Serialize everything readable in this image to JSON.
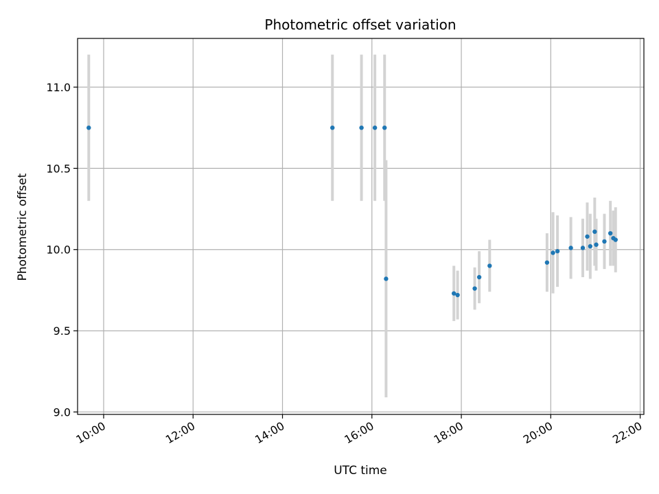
{
  "chart_data": {
    "type": "scatter",
    "title": "Photometric offset variation",
    "xlabel": "UTC time",
    "ylabel": "Photometric offset",
    "xlim": [
      "09:25",
      "22:05"
    ],
    "ylim": [
      8.985,
      11.3
    ],
    "x_ticks": [
      "10:00",
      "12:00",
      "14:00",
      "16:00",
      "18:00",
      "20:00",
      "22:00"
    ],
    "y_ticks": [
      "9.0",
      "9.5",
      "10.0",
      "10.5",
      "11.0"
    ],
    "grid": true,
    "error_bar_color": "#d3d3d3",
    "point_color": "#1f77b4",
    "series": [
      {
        "points": [
          {
            "x": "09:40",
            "y": 10.75,
            "err": 0.45
          },
          {
            "x": "15:07",
            "y": 10.75,
            "err": 0.45
          },
          {
            "x": "15:46",
            "y": 10.75,
            "err": 0.45
          },
          {
            "x": "16:04",
            "y": 10.75,
            "err": 0.45
          },
          {
            "x": "16:17",
            "y": 10.75,
            "err": 0.45
          },
          {
            "x": "16:19",
            "y": 9.82,
            "err": 0.73
          },
          {
            "x": "17:50",
            "y": 9.73,
            "err": 0.17
          },
          {
            "x": "17:55",
            "y": 9.72,
            "err": 0.15
          },
          {
            "x": "18:18",
            "y": 9.76,
            "err": 0.13
          },
          {
            "x": "18:24",
            "y": 9.83,
            "err": 0.16
          },
          {
            "x": "18:38",
            "y": 9.9,
            "err": 0.16
          },
          {
            "x": "19:55",
            "y": 9.92,
            "err": 0.18
          },
          {
            "x": "20:03",
            "y": 9.98,
            "err": 0.25
          },
          {
            "x": "20:09",
            "y": 9.99,
            "err": 0.22
          },
          {
            "x": "20:27",
            "y": 10.01,
            "err": 0.19
          },
          {
            "x": "20:43",
            "y": 10.01,
            "err": 0.18
          },
          {
            "x": "20:49",
            "y": 10.08,
            "err": 0.21
          },
          {
            "x": "20:53",
            "y": 10.02,
            "err": 0.2
          },
          {
            "x": "20:59",
            "y": 10.11,
            "err": 0.21
          },
          {
            "x": "21:01",
            "y": 10.03,
            "err": 0.16
          },
          {
            "x": "21:12",
            "y": 10.05,
            "err": 0.17
          },
          {
            "x": "21:20",
            "y": 10.1,
            "err": 0.2
          },
          {
            "x": "21:24",
            "y": 10.07,
            "err": 0.17
          },
          {
            "x": "21:27",
            "y": 10.06,
            "err": 0.2
          }
        ]
      }
    ]
  }
}
